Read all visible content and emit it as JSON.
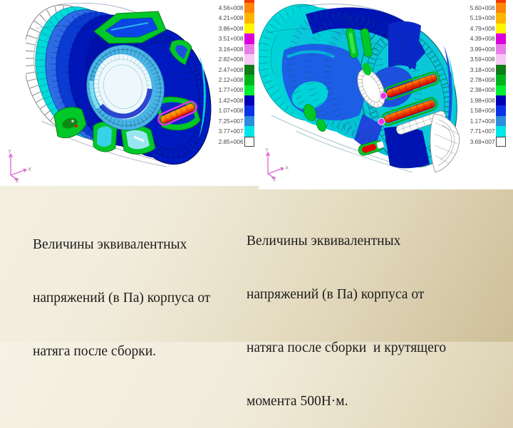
{
  "slide": {
    "background_top_color": "#f5f1e4",
    "background_bottom_color": "#cdbf98",
    "panel_color": "#ffffff"
  },
  "legends": {
    "left": {
      "top_cut_color": "#f23900",
      "rows": [
        {
          "value": "4.56+008",
          "color": "#ff8608"
        },
        {
          "value": "4.21+008",
          "color": "#ffb400"
        },
        {
          "value": "3.86+008",
          "color": "#fff500"
        },
        {
          "value": "3.51+008",
          "color": "#dc00dc"
        },
        {
          "value": "3.16+008",
          "color": "#e87ee8"
        },
        {
          "value": "2.82+008",
          "color": "#f6c8f6"
        },
        {
          "value": "2.47+008",
          "color": "#0f7d16"
        },
        {
          "value": "2.12+008",
          "color": "#00b41e"
        },
        {
          "value": "1.77+008",
          "color": "#00ee32"
        },
        {
          "value": "1.42+008",
          "color": "#0000b4"
        },
        {
          "value": "1.07+008",
          "color": "#0a32e6"
        },
        {
          "value": "7.25+007",
          "color": "#2d8cdc"
        },
        {
          "value": "3.77+007",
          "color": "#00e6e6"
        },
        {
          "value": "2.85+006",
          "color": "#ffffff",
          "outlined": true
        }
      ]
    },
    "right": {
      "top_cut_color": "#f23900",
      "rows": [
        {
          "value": "5.60+008",
          "color": "#ff8608"
        },
        {
          "value": "5.19+008",
          "color": "#ffb400"
        },
        {
          "value": "4.79+008",
          "color": "#fff500"
        },
        {
          "value": "4.39+008",
          "color": "#dc00dc"
        },
        {
          "value": "3.99+008",
          "color": "#e87ee8"
        },
        {
          "value": "3.59+008",
          "color": "#f6c8f6"
        },
        {
          "value": "3.18+008",
          "color": "#0f7d16"
        },
        {
          "value": "2.78+008",
          "color": "#00b41e"
        },
        {
          "value": "2.38+008",
          "color": "#00ee32"
        },
        {
          "value": "1.98+008",
          "color": "#0000b4"
        },
        {
          "value": "1.58+008",
          "color": "#0a32e6"
        },
        {
          "value": "1.17+008",
          "color": "#2d8cdc"
        },
        {
          "value": "7.71+007",
          "color": "#00e6e6"
        },
        {
          "value": "3.69+007",
          "color": "#ffffff",
          "outlined": true
        }
      ]
    }
  },
  "captions": {
    "left": {
      "lines": [
        "Величины эквивалентных",
        "напряжений (в Па) корпуса от",
        "натяга после сборки."
      ]
    },
    "right": {
      "lines": [
        "Величины эквивалентных",
        "напряжений (в Па) корпуса от",
        "натяга после сборки  и крутящего",
        "момента 500Н·м."
      ]
    }
  },
  "triads": {
    "labels": {
      "x": "X",
      "y": "Y",
      "z": "Z"
    },
    "axis_color": "#e06ad8"
  }
}
